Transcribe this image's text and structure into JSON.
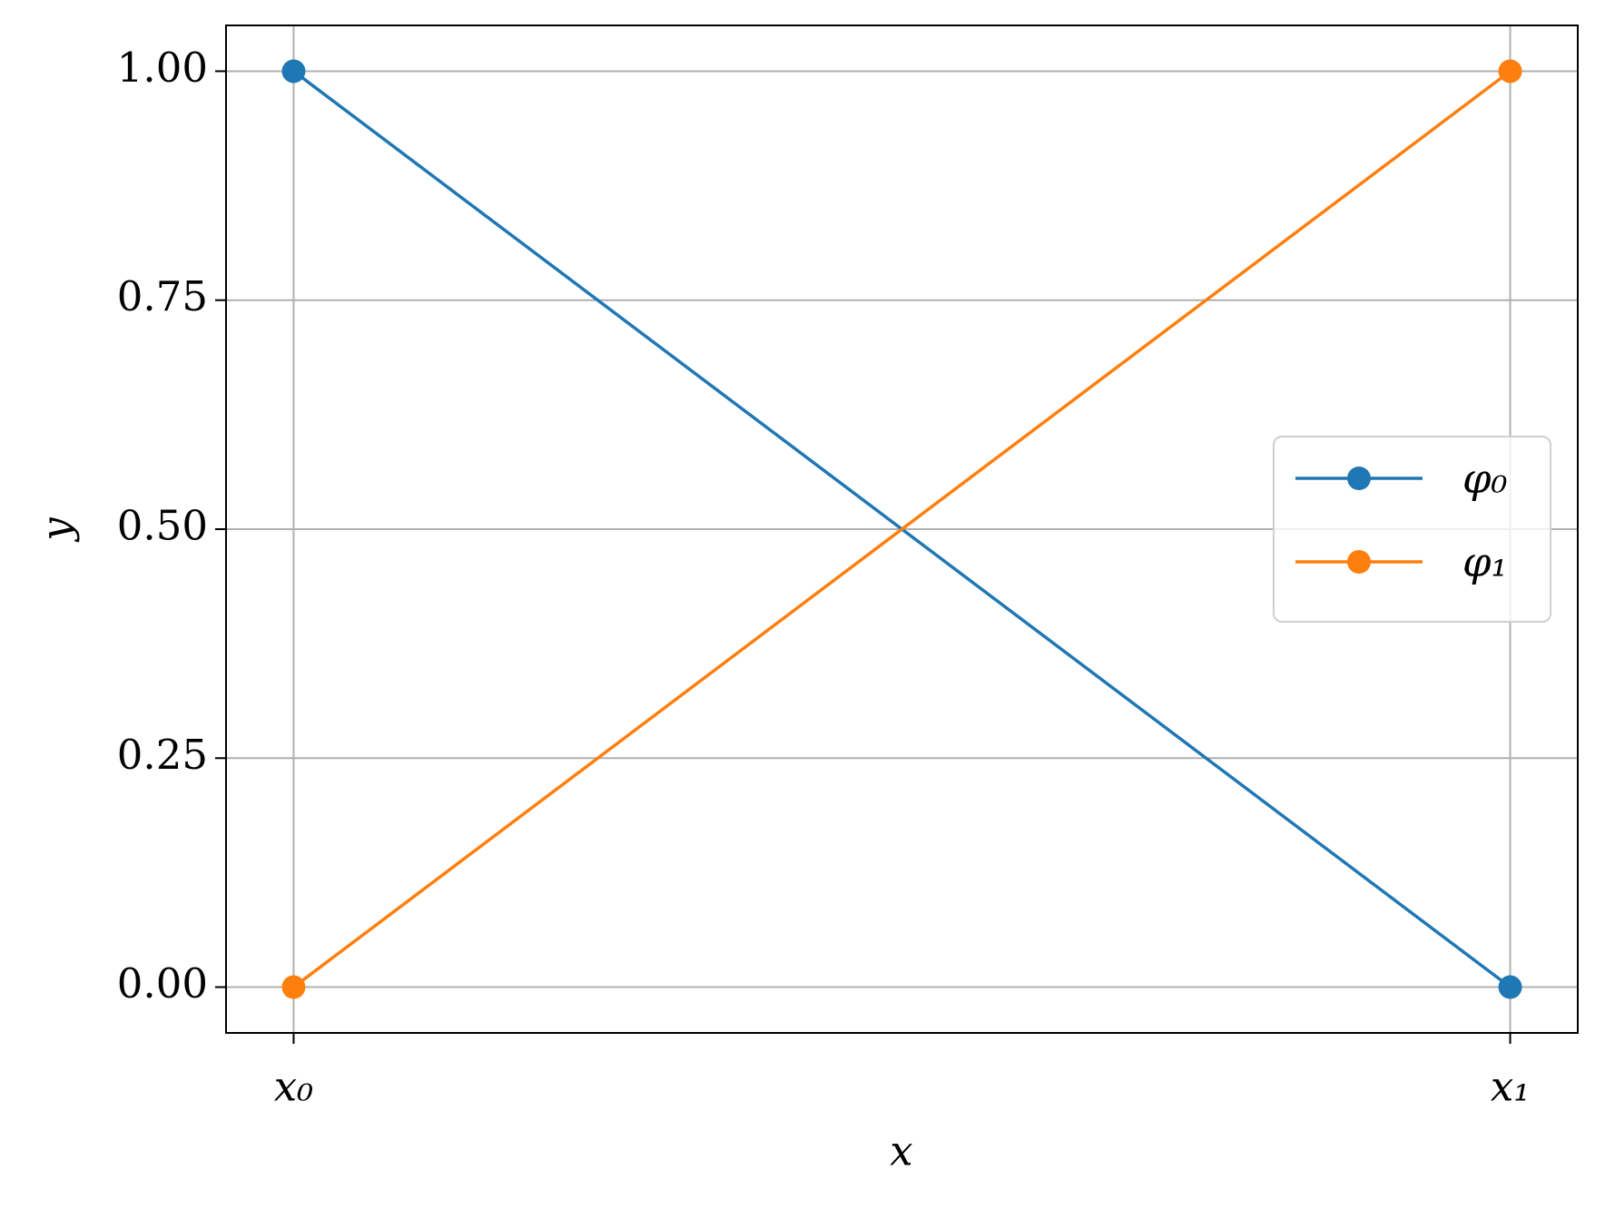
{
  "chart_data": {
    "type": "line",
    "xlabel": "x",
    "ylabel": "y",
    "categories": [
      "x₀",
      "x₁"
    ],
    "series": [
      {
        "name": "φ₀",
        "color": "#1f77b4",
        "values": [
          1,
          0
        ]
      },
      {
        "name": "φ₁",
        "color": "#ff7f0e",
        "values": [
          0,
          1
        ]
      }
    ],
    "ylim": [
      -0.05,
      1.05
    ],
    "yticks": [
      {
        "value": 0,
        "label": "0.00"
      },
      0.25,
      {
        "value": 0.5,
        "label": "0.50"
      },
      0.75,
      {
        "value": 1,
        "label": "1.00"
      }
    ],
    "grid": true,
    "legend": "center right"
  }
}
